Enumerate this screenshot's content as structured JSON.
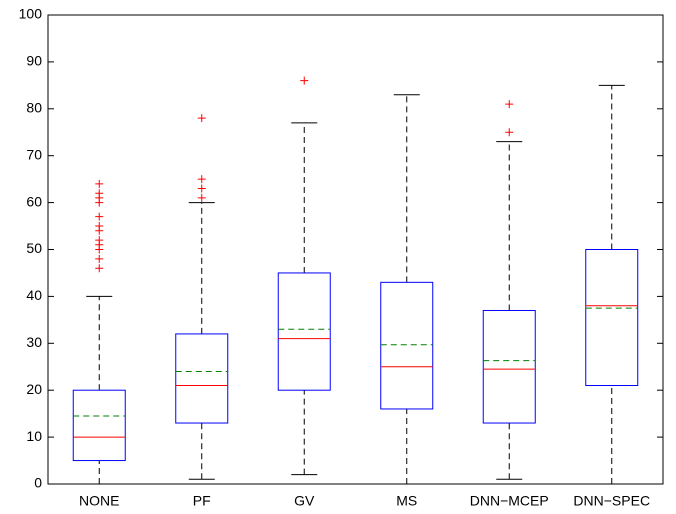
{
  "chart_data": {
    "type": "box",
    "categories": [
      "NONE",
      "PF",
      "GV",
      "MS",
      "DNN−MCEP",
      "DNN−SPEC"
    ],
    "boxes": [
      {
        "min": 0,
        "q1": 5,
        "median": 10,
        "q3": 20,
        "max": 40,
        "mean": 14.5,
        "outliers": [
          46,
          48,
          50,
          51,
          52,
          54,
          55,
          57,
          60,
          61,
          62,
          64
        ]
      },
      {
        "min": 1,
        "q1": 13,
        "median": 21,
        "q3": 32,
        "max": 60,
        "mean": 24,
        "outliers": [
          61,
          63,
          65,
          78
        ]
      },
      {
        "min": 2,
        "q1": 20,
        "median": 31,
        "q3": 45,
        "max": 77,
        "mean": 33,
        "outliers": [
          86
        ]
      },
      {
        "min": 0,
        "q1": 16,
        "median": 25,
        "q3": 43,
        "max": 83,
        "mean": 29.7,
        "outliers": []
      },
      {
        "min": 1,
        "q1": 13,
        "median": 24.5,
        "q3": 37,
        "max": 73,
        "mean": 26.3,
        "outliers": [
          75,
          81
        ]
      },
      {
        "min": 0,
        "q1": 21,
        "median": 38,
        "q3": 50,
        "max": 85,
        "mean": 37.5,
        "outliers": []
      }
    ],
    "box_color": "#0000ff",
    "median_color": "#ff0000",
    "mean_color": "#008000",
    "outlier_color": "#ff0000",
    "whisker_color": "#000000",
    "ylim": [
      0,
      100
    ],
    "yticks": [
      0,
      10,
      20,
      30,
      40,
      50,
      60,
      70,
      80,
      90,
      100
    ]
  }
}
